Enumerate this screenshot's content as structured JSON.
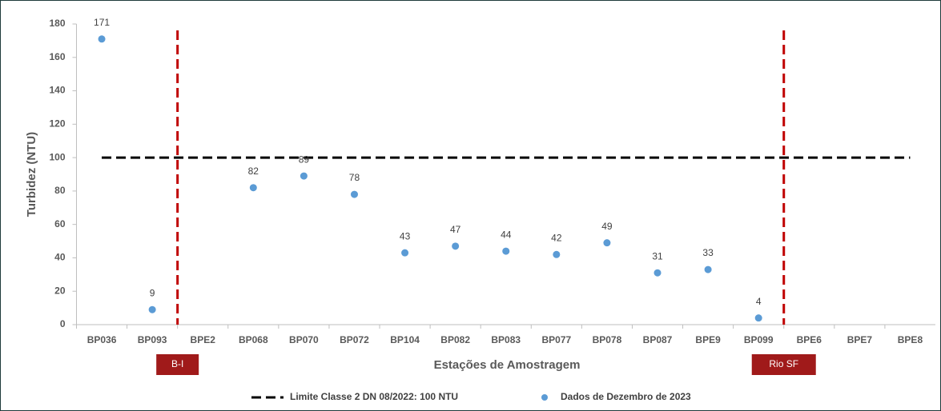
{
  "chart_data": {
    "type": "scatter",
    "ylabel": "Turbidez (NTU)",
    "xlabel": "Estações de Amostragem",
    "categories": [
      "BP036",
      "BP093",
      "BPE2",
      "BP068",
      "BP070",
      "BP072",
      "BP104",
      "BP082",
      "BP083",
      "BP077",
      "BP078",
      "BP087",
      "BPE9",
      "BP099",
      "BPE6",
      "BPE7",
      "BPE8"
    ],
    "series": [
      {
        "name": "Dados de Dezembro de 2023",
        "color": "#5b9bd5",
        "values": [
          171,
          9,
          null,
          82,
          89,
          78,
          43,
          47,
          44,
          42,
          49,
          31,
          33,
          4,
          null,
          null,
          null
        ]
      }
    ],
    "limit": {
      "name": "Limite Classe 2 DN 08/2022: 100 NTU",
      "value": 100,
      "color": "#000000"
    },
    "dividers": [
      {
        "label": "B-I",
        "after": "BP093",
        "color": "#c00000"
      },
      {
        "label": "Rio SF",
        "after": "BP099",
        "color": "#c00000"
      }
    ],
    "ylim": [
      0,
      180
    ],
    "yticks": [
      0,
      20,
      40,
      60,
      80,
      100,
      120,
      140,
      160,
      180
    ],
    "grid": false
  }
}
